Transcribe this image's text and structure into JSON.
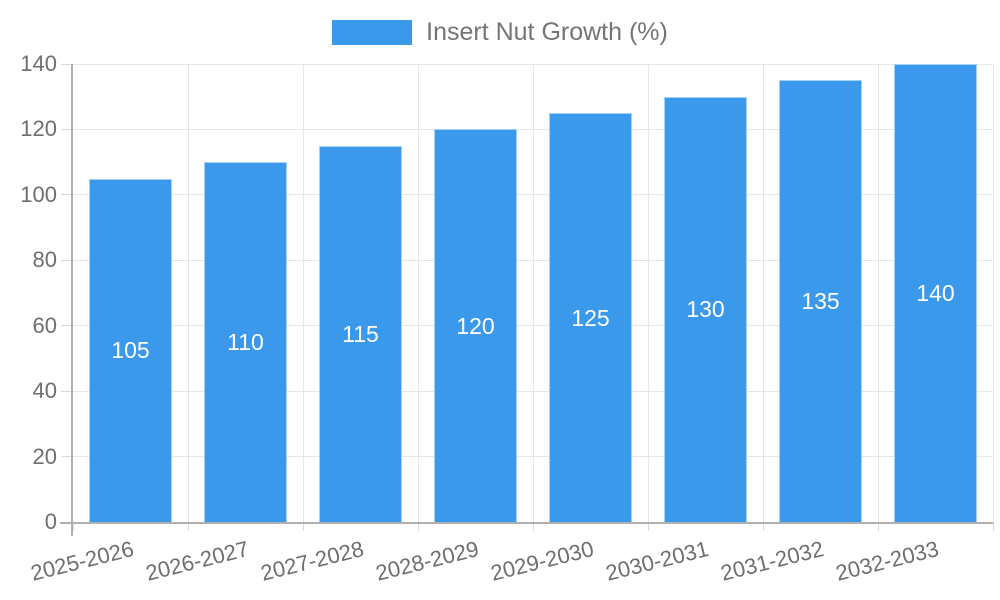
{
  "chart_data": {
    "type": "bar",
    "title": "",
    "legend": [
      "Insert Nut Growth (%)"
    ],
    "legend_position": "top",
    "categories": [
      "2025-2026",
      "2026-2027",
      "2027-2028",
      "2028-2029",
      "2029-2030",
      "2030-2031",
      "2031-2032",
      "2032-2033"
    ],
    "values": [
      105,
      110,
      115,
      120,
      125,
      130,
      135,
      140
    ],
    "data_labels_shown": true,
    "xlabel": "",
    "ylabel": "",
    "ylim": [
      0,
      140
    ],
    "ytick_step": 20,
    "grid": true,
    "x_label_rotation_deg": -14
  },
  "colors": {
    "bar": "#3b99ec",
    "bar_border": "rgba(255,255,255,0.55)",
    "grid": "#e6e6e6",
    "axis": "#b0b0b0",
    "tick": "#d9d9d9",
    "tick_text": "#6e6e6e",
    "legend_text": "#757575",
    "bar_label": "#ffffff",
    "background": "#ffffff"
  }
}
